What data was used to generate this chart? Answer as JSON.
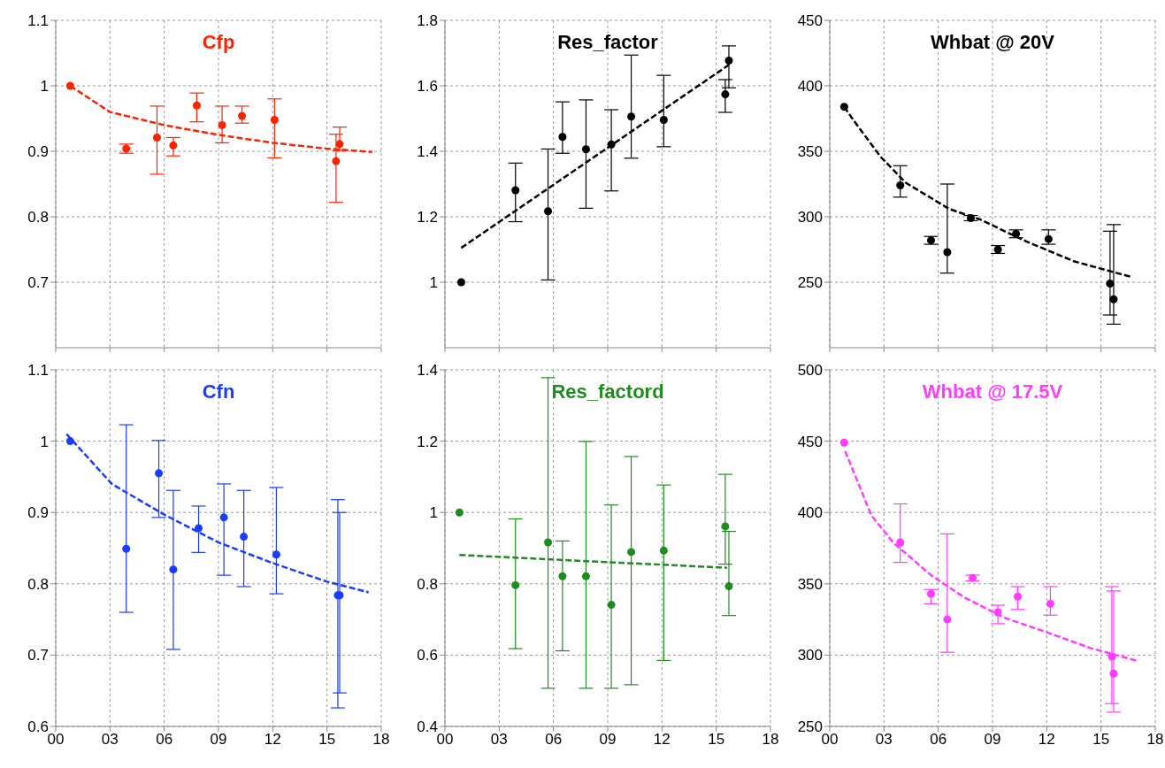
{
  "chart_data": [
    {
      "type": "scatter",
      "title": "Cfp",
      "xlim": [
        0,
        18
      ],
      "xticks": [
        {
          "value": 0,
          "label": null
        },
        {
          "value": 3,
          "label": null
        },
        {
          "value": 6,
          "label": null
        },
        {
          "value": 9,
          "label": null
        },
        {
          "value": 12,
          "label": null
        },
        {
          "value": 15,
          "label": null
        },
        {
          "value": 18,
          "label": null
        }
      ],
      "ylim": [
        0.6,
        1.1
      ],
      "yticks": [
        0.7,
        0.8,
        0.9,
        1,
        1.1
      ],
      "grid": true,
      "tick_labels": "y",
      "marker": "circle",
      "series": [
        {
          "color": "#ff2200",
          "x": [
            0.8,
            3.9,
            5.6,
            6.5,
            7.8,
            9.2,
            10.3,
            12.1,
            15.5,
            15.7
          ],
          "values": [
            1.0,
            0.904,
            0.921,
            0.909,
            0.97,
            0.94,
            0.954,
            0.948,
            0.885,
            0.911
          ],
          "errors": [
            null,
            [
              0.897,
              0.911
            ],
            [
              0.865,
              0.969
            ],
            [
              0.893,
              0.921
            ],
            [
              0.945,
              0.989
            ],
            [
              0.913,
              0.969
            ],
            [
              0.943,
              0.969
            ],
            [
              0.89,
              0.98
            ],
            [
              0.822,
              0.926
            ],
            [
              0.901,
              0.937
            ]
          ]
        },
        {
          "type": "line",
          "color": "#ff2200",
          "line_style": "dashed",
          "marker": "none",
          "x": [
            0.8,
            3,
            6,
            9,
            12,
            15,
            17.5
          ],
          "values": [
            1.0,
            0.96,
            0.94,
            0.925,
            0.913,
            0.904,
            0.899
          ]
        }
      ]
    },
    {
      "type": "scatter",
      "title": "Res_factor",
      "xlim": [
        0,
        18
      ],
      "xticks": [
        {
          "value": 0,
          "label": null
        },
        {
          "value": 3,
          "label": null
        },
        {
          "value": 6,
          "label": null
        },
        {
          "value": 9,
          "label": null
        },
        {
          "value": 12,
          "label": null
        },
        {
          "value": 15,
          "label": null
        },
        {
          "value": 18,
          "label": null
        }
      ],
      "ylim": [
        0.8,
        1.8
      ],
      "yticks": [
        1,
        1.2,
        1.4,
        1.6,
        1.8
      ],
      "grid": true,
      "tick_labels": "y",
      "marker": "circle",
      "series": [
        {
          "color": "#000000",
          "x": [
            0.9,
            3.9,
            5.7,
            6.5,
            7.8,
            9.2,
            10.3,
            12.1,
            15.5,
            15.7
          ],
          "values": [
            1.0,
            1.281,
            1.217,
            1.444,
            1.406,
            1.421,
            1.506,
            1.496,
            1.574,
            1.677
          ],
          "errors": [
            null,
            [
              1.185,
              1.364
            ],
            [
              1.007,
              1.407
            ],
            [
              1.394,
              1.551
            ],
            [
              1.226,
              1.557
            ],
            [
              1.279,
              1.527
            ],
            [
              1.379,
              1.694
            ],
            [
              1.414,
              1.632
            ],
            [
              1.519,
              1.619
            ],
            [
              1.594,
              1.722
            ]
          ]
        },
        {
          "type": "line",
          "color": "#000000",
          "line_style": "dashed",
          "marker": "none",
          "x": [
            0.9,
            15.7
          ],
          "values": [
            1.105,
            1.664
          ]
        }
      ]
    },
    {
      "type": "scatter",
      "title": "Whbat @ 20V",
      "xlim": [
        0,
        18
      ],
      "xticks": [
        {
          "value": 0,
          "label": null
        },
        {
          "value": 3,
          "label": null
        },
        {
          "value": 6,
          "label": null
        },
        {
          "value": 9,
          "label": null
        },
        {
          "value": 12,
          "label": null
        },
        {
          "value": 15,
          "label": null
        },
        {
          "value": 18,
          "label": null
        }
      ],
      "ylim": [
        200,
        450
      ],
      "yticks": [
        250,
        300,
        350,
        400,
        450
      ],
      "grid": true,
      "tick_labels": "y",
      "marker": "circle",
      "series": [
        {
          "color": "#000000",
          "x": [
            0.8,
            3.9,
            5.6,
            6.5,
            7.8,
            9.3,
            10.3,
            12.1,
            15.5,
            15.7
          ],
          "values": [
            384,
            324,
            282,
            273,
            299,
            275,
            287,
            283,
            249,
            237
          ],
          "errors": [
            null,
            [
              315,
              339
            ],
            [
              279,
              285
            ],
            [
              257,
              325
            ],
            [
              297,
              301
            ],
            [
              272,
              278
            ],
            [
              284,
              290
            ],
            [
              279,
              290
            ],
            [
              225,
              289
            ],
            [
              218,
              294
            ]
          ]
        },
        {
          "type": "line",
          "color": "#000000",
          "line_style": "dashed",
          "marker": "none",
          "x": [
            0.8,
            1.3,
            2.8,
            4.2,
            6.6,
            8.3,
            10.9,
            13.5,
            16.7
          ],
          "values": [
            384,
            374,
            346,
            326,
            306,
            298,
            281,
            266,
            254
          ]
        }
      ]
    },
    {
      "type": "scatter",
      "title": "Cfn",
      "xlim": [
        0,
        18
      ],
      "xticks": [
        {
          "value": 0,
          "label": "00"
        },
        {
          "value": 3,
          "label": "03"
        },
        {
          "value": 6,
          "label": "06"
        },
        {
          "value": 9,
          "label": "09"
        },
        {
          "value": 12,
          "label": "12"
        },
        {
          "value": 15,
          "label": "15"
        },
        {
          "value": 18,
          "label": "18"
        }
      ],
      "ylim": [
        0.6,
        1.1
      ],
      "yticks": [
        0.6,
        0.7,
        0.8,
        0.9,
        1,
        1.1
      ],
      "grid": true,
      "marker": "circle",
      "series": [
        {
          "color": "#1a3cff",
          "x": [
            0.8,
            3.9,
            5.7,
            6.5,
            7.9,
            9.3,
            10.4,
            12.2,
            15.6,
            15.7
          ],
          "values": [
            1.0,
            0.849,
            0.955,
            0.82,
            0.878,
            0.893,
            0.866,
            0.841,
            0.784,
            0.784
          ],
          "errors": [
            null,
            [
              0.76,
              1.023
            ],
            [
              0.893,
              1.001
            ],
            [
              0.708,
              0.931
            ],
            [
              0.844,
              0.909
            ],
            [
              0.812,
              0.94
            ],
            [
              0.796,
              0.931
            ],
            [
              0.786,
              0.935
            ],
            [
              0.626,
              0.918
            ],
            [
              0.647,
              0.9
            ]
          ]
        },
        {
          "type": "line",
          "color": "#1a3cff",
          "line_style": "dashed",
          "marker": "none",
          "x": [
            0.6,
            3.1,
            6,
            9,
            12,
            15,
            17.3
          ],
          "values": [
            1.01,
            0.94,
            0.897,
            0.858,
            0.829,
            0.803,
            0.788
          ]
        }
      ]
    },
    {
      "type": "scatter",
      "title": "Res_factord",
      "xlim": [
        0,
        18
      ],
      "xticks": [
        {
          "value": 0,
          "label": "00"
        },
        {
          "value": 3,
          "label": "03"
        },
        {
          "value": 6,
          "label": "06"
        },
        {
          "value": 9,
          "label": "09"
        },
        {
          "value": 12,
          "label": "12"
        },
        {
          "value": 15,
          "label": "15"
        },
        {
          "value": 18,
          "label": "18"
        }
      ],
      "ylim": [
        0.4,
        1.4
      ],
      "yticks": [
        0.4,
        0.6,
        0.8,
        1,
        1.2,
        1.4
      ],
      "grid": true,
      "marker": "circle",
      "series": [
        {
          "color": "#1e8c1e",
          "x": [
            0.8,
            3.9,
            5.7,
            6.5,
            7.8,
            9.2,
            10.3,
            12.1,
            15.5,
            15.7
          ],
          "values": [
            1.0,
            0.796,
            0.916,
            0.821,
            0.821,
            0.741,
            0.889,
            0.893,
            0.961,
            0.793
          ],
          "errors": [
            null,
            [
              0.618,
              0.982
            ],
            [
              0.507,
              1.378
            ],
            [
              0.612,
              0.92
            ],
            [
              0.507,
              1.199
            ],
            [
              0.507,
              1.021
            ],
            [
              0.517,
              1.157
            ],
            [
              0.585,
              1.077
            ],
            [
              0.855,
              1.107
            ],
            [
              0.711,
              0.947
            ]
          ]
        },
        {
          "type": "line",
          "color": "#1e8c1e",
          "line_style": "dashed",
          "marker": "none",
          "x": [
            0.8,
            8,
            15.6
          ],
          "values": [
            0.881,
            0.863,
            0.845
          ]
        }
      ]
    },
    {
      "type": "scatter",
      "title": "Whbat @ 17.5V",
      "xlim": [
        0,
        18
      ],
      "xticks": [
        {
          "value": 0,
          "label": "00"
        },
        {
          "value": 3,
          "label": "03"
        },
        {
          "value": 6,
          "label": "06"
        },
        {
          "value": 9,
          "label": "09"
        },
        {
          "value": 12,
          "label": "12"
        },
        {
          "value": 15,
          "label": "15"
        },
        {
          "value": 18,
          "label": "18"
        }
      ],
      "ylim": [
        250,
        500
      ],
      "yticks": [
        250,
        300,
        350,
        400,
        450,
        500
      ],
      "grid": true,
      "marker": "circle",
      "series": [
        {
          "color": "#ff3cff",
          "x": [
            0.8,
            3.9,
            5.6,
            6.5,
            7.9,
            9.3,
            10.4,
            12.2,
            15.6,
            15.7
          ],
          "values": [
            449,
            379,
            343,
            325,
            354,
            330,
            341,
            336,
            299,
            287
          ],
          "errors": [
            null,
            [
              365,
              406
            ],
            [
              336,
              346
            ],
            [
              302,
              385
            ],
            [
              352,
              356
            ],
            [
              322,
              335
            ],
            [
              332,
              348
            ],
            [
              328,
              348
            ],
            [
              266,
              348
            ],
            [
              260,
              345
            ]
          ]
        },
        {
          "type": "line",
          "color": "#ff3cff",
          "line_style": "dashed",
          "marker": "none",
          "x": [
            0.85,
            1.5,
            2.3,
            3.5,
            5.6,
            7.5,
            9.7,
            12,
            14.4,
            17
          ],
          "values": [
            443,
            423,
            398,
            379,
            356,
            340,
            326,
            316,
            305,
            296
          ]
        }
      ]
    }
  ]
}
